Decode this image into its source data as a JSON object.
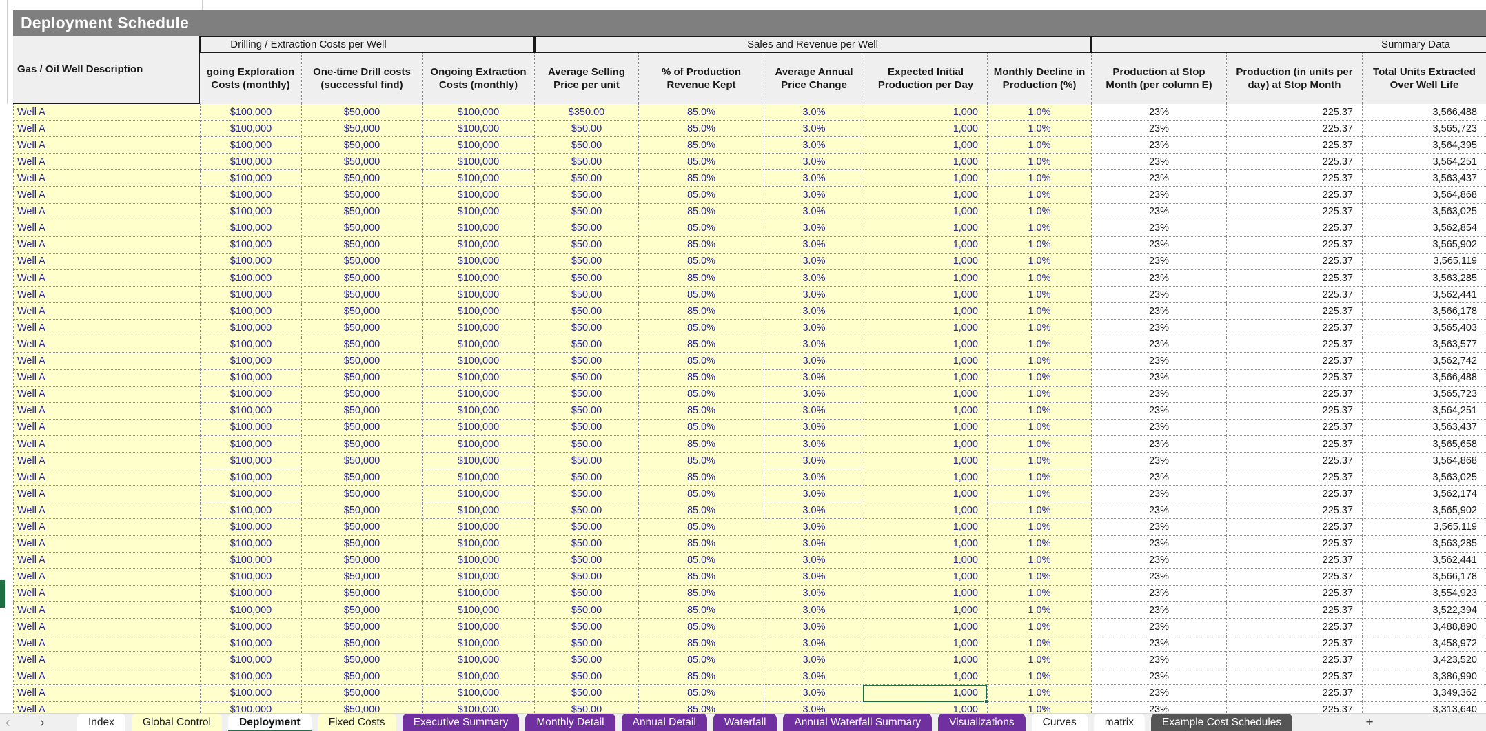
{
  "title": "Deployment Schedule",
  "colors": {
    "banner_bg": "#7f7f7f",
    "input_bg": "#ffffcc",
    "input_text": "#26269e",
    "header_bg": "#f0efef",
    "selection_green": "#1d6f42",
    "tab_purple": "#7030a0",
    "tab_dark": "#555555",
    "active_tab_underline": "#1e7145"
  },
  "table": {
    "row_header_label": "Gas / Oil Well Description",
    "groups": [
      {
        "key": "drill",
        "label": "Drilling / Extraction Costs per Well"
      },
      {
        "key": "sales",
        "label": "Sales and Revenue per Well"
      },
      {
        "key": "summary",
        "label": "Summary Data"
      }
    ],
    "columns": [
      {
        "key": "c1",
        "lines": [
          "going Exploration",
          "Costs (monthly)"
        ]
      },
      {
        "key": "c2",
        "lines": [
          "One-time Drill costs",
          "(successful find)"
        ]
      },
      {
        "key": "c3",
        "lines": [
          "Ongoing Extraction",
          "Costs (monthly)"
        ]
      },
      {
        "key": "c4",
        "lines": [
          "Average Selling",
          "Price per unit"
        ]
      },
      {
        "key": "c5",
        "lines": [
          "% of Production",
          "Revenue Kept"
        ]
      },
      {
        "key": "c6",
        "lines": [
          "Average Annual",
          "Price Change"
        ]
      },
      {
        "key": "c7",
        "lines": [
          "Expected Initial",
          "Production per Day"
        ]
      },
      {
        "key": "c8",
        "lines": [
          "Monthly Decline in",
          "Production (%)"
        ]
      },
      {
        "key": "c9",
        "lines": [
          "Production at Stop",
          "Month (per column E)"
        ]
      },
      {
        "key": "c10",
        "lines": [
          "Production (in  units per",
          "day) at Stop Month"
        ]
      },
      {
        "key": "c11",
        "lines": [
          "Total Units Extracted",
          "Over Well Life"
        ]
      }
    ],
    "row_defaults": {
      "desc": "Well A",
      "c1": "$100,000",
      "c2": "$50,000",
      "c3": "$100,000",
      "c4": "$50.00",
      "c5": "85.0%",
      "c6": "3.0%",
      "c7": "1,000",
      "c8": "1.0%",
      "c9": "23%",
      "c10": "225.37"
    },
    "rows": [
      {
        "c4": "$350.00",
        "c11": "3,566,488"
      },
      {
        "c11": "3,565,723"
      },
      {
        "c11": "3,564,395"
      },
      {
        "c11": "3,564,251"
      },
      {
        "c11": "3,563,437"
      },
      {
        "c11": "3,564,868"
      },
      {
        "c11": "3,563,025"
      },
      {
        "c11": "3,562,854"
      },
      {
        "c11": "3,565,902"
      },
      {
        "c11": "3,565,119"
      },
      {
        "c11": "3,563,285"
      },
      {
        "c11": "3,562,441"
      },
      {
        "c11": "3,566,178"
      },
      {
        "c11": "3,565,403"
      },
      {
        "c11": "3,563,577"
      },
      {
        "c11": "3,562,742"
      },
      {
        "c11": "3,566,488"
      },
      {
        "c11": "3,565,723"
      },
      {
        "c11": "3,564,251"
      },
      {
        "c11": "3,563,437"
      },
      {
        "c11": "3,565,658"
      },
      {
        "c11": "3,564,868"
      },
      {
        "c11": "3,563,025"
      },
      {
        "c11": "3,562,174"
      },
      {
        "c11": "3,565,902"
      },
      {
        "c11": "3,565,119"
      },
      {
        "c11": "3,563,285"
      },
      {
        "c11": "3,562,441"
      },
      {
        "c11": "3,566,178"
      },
      {
        "c11": "3,554,923"
      },
      {
        "c11": "3,522,394"
      },
      {
        "c11": "3,488,890"
      },
      {
        "c11": "3,458,972"
      },
      {
        "c11": "3,423,520"
      },
      {
        "c11": "3,386,990"
      },
      {
        "c11": "3,349,362"
      },
      {
        "c11": "3,313,640"
      }
    ],
    "selection": {
      "row_index": 35,
      "column": "c7"
    }
  },
  "tabbar": {
    "nav_prev": "‹",
    "nav_next": "›",
    "add_label": "+",
    "tabs": [
      {
        "label": "Index",
        "style": "white"
      },
      {
        "label": "Global Control",
        "style": "yellow"
      },
      {
        "label": "Deployment",
        "style": "active"
      },
      {
        "label": "Fixed Costs",
        "style": "yellow"
      },
      {
        "label": "Executive Summary",
        "style": "purple"
      },
      {
        "label": "Monthly Detail",
        "style": "purple"
      },
      {
        "label": "Annual Detail",
        "style": "purple"
      },
      {
        "label": "Waterfall",
        "style": "purple"
      },
      {
        "label": "Annual Waterfall Summary",
        "style": "purple"
      },
      {
        "label": "Visualizations",
        "style": "purple"
      },
      {
        "label": "Curves",
        "style": "white"
      },
      {
        "label": "matrix",
        "style": "white"
      },
      {
        "label": "Example Cost Schedules",
        "style": "dark"
      }
    ]
  }
}
